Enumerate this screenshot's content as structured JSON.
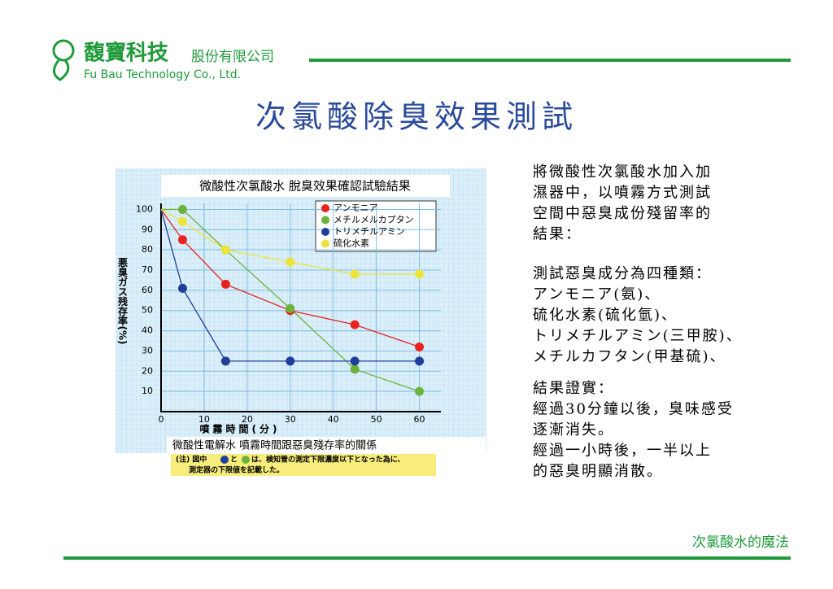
{
  "header": {
    "logo": "馥寶科技",
    "company": "股份有限公司",
    "english": "Fu Bau Technology Co., Ltd."
  },
  "title": "次氯酸除臭效果測試",
  "chart_data": {
    "type": "line",
    "title": "微酸性次氯酸水 脫臭效果確認試驗結果",
    "x_label": "噴霧時間(分)",
    "y_label": "悪臭ガス残存率(%)",
    "x": [
      0,
      5,
      15,
      30,
      45,
      60
    ],
    "xlim": [
      0,
      65
    ],
    "xticks": [
      0,
      10,
      20,
      30,
      40,
      50,
      60
    ],
    "ylim": [
      0,
      103
    ],
    "yticks": [
      10,
      20,
      30,
      40,
      50,
      60,
      70,
      80,
      90,
      100
    ],
    "grid": true,
    "series": [
      {
        "name": "アンモニア",
        "color": "#e8231f",
        "values": [
          100,
          85,
          63,
          50,
          43,
          32
        ]
      },
      {
        "name": "メチルメルカプタン",
        "color": "#6ab23c",
        "values": [
          100,
          100,
          80,
          51,
          21,
          10
        ]
      },
      {
        "name": "トリメチルアミン",
        "color": "#1f3f9a",
        "values": [
          100,
          61,
          25,
          25,
          25,
          25
        ]
      },
      {
        "name": "硫化水素",
        "color": "#ece43a",
        "values": [
          100,
          94,
          80,
          74,
          68,
          68
        ]
      }
    ],
    "caption": "微酸性電解水 噴霧時間跟惡臭殘存率的關係",
    "note": [
      "(注) 図中",
      "と",
      "は、検知管の測定下限濃度以下となった為に、",
      "測定器の下限値を記載した。"
    ]
  },
  "body": [
    [
      "將微酸性次氯酸水加入加",
      "濕器中，以噴霧方式測試",
      "空間中惡臭成份殘留率的",
      "結果："
    ],
    [
      "測試惡臭成分為四種類：",
      "アンモニア(氨)、",
      "硫化水素(硫化氫)、",
      "トリメチルアミン(三甲胺)、",
      "メチルカフタン(甲基硫)、"
    ],
    [
      "結果證實：",
      "經過30分鐘以後，臭味感受",
      "逐漸消失。",
      "經過一小時後，一半以上",
      "的惡臭明顯消散。"
    ]
  ],
  "footer": "次氯酸水的魔法"
}
